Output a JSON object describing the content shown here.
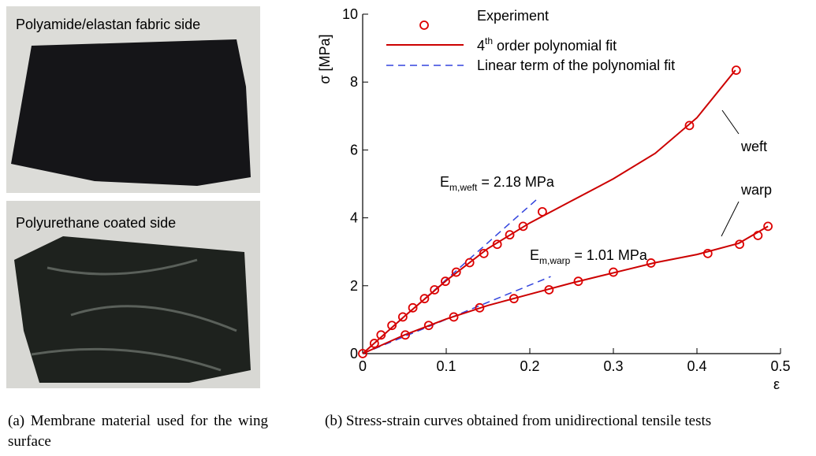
{
  "figure": {
    "photo_labels": [
      "Polyamide/elastan fabric side",
      "Polyurethane coated side"
    ],
    "caption_a": "(a) Membrane material used for the wing surface",
    "caption_b": "(b) Stress-strain curves obtained from unidirectional tensile tests"
  },
  "chart_data": {
    "type": "scatter-line",
    "x_label": "ε",
    "y_label": "σ [MPa]",
    "xlim": [
      0,
      0.5
    ],
    "ylim": [
      0,
      10
    ],
    "xticks": [
      0,
      0.1,
      0.2,
      0.3,
      0.4,
      0.5
    ],
    "yticks": [
      0,
      2,
      4,
      6,
      8,
      10
    ],
    "experiment": {
      "name": "Experiment",
      "color": "#dd0000",
      "weft": {
        "x": [
          0,
          0.014,
          0.022,
          0.035,
          0.048,
          0.06,
          0.074,
          0.086,
          0.099,
          0.112,
          0.128,
          0.145,
          0.161,
          0.176,
          0.192,
          0.215,
          0.391,
          0.447
        ],
        "values": [
          0,
          0.3,
          0.55,
          0.83,
          1.08,
          1.35,
          1.62,
          1.88,
          2.13,
          2.4,
          2.68,
          2.95,
          3.22,
          3.5,
          3.75,
          4.18,
          6.72,
          8.35
        ]
      },
      "warp": {
        "x": [
          0.051,
          0.079,
          0.109,
          0.14,
          0.181,
          0.223,
          0.258,
          0.3,
          0.345,
          0.413,
          0.451,
          0.473,
          0.485
        ],
        "values": [
          0.55,
          0.83,
          1.08,
          1.35,
          1.62,
          1.88,
          2.13,
          2.4,
          2.67,
          2.95,
          3.22,
          3.48,
          3.75
        ]
      }
    },
    "fit": {
      "name_base": "4",
      "name_sup": "th",
      "name_rest": "order polynomial fit",
      "color": "#cc0000",
      "weft": {
        "x": [
          0,
          0.05,
          0.1,
          0.15,
          0.2,
          0.25,
          0.3,
          0.35,
          0.4,
          0.446
        ],
        "values": [
          0,
          1.1,
          2.15,
          3.1,
          3.85,
          4.5,
          5.15,
          5.9,
          6.95,
          8.35
        ]
      },
      "warp": {
        "x": [
          0,
          0.05,
          0.1,
          0.15,
          0.2,
          0.25,
          0.3,
          0.35,
          0.4,
          0.45,
          0.485
        ],
        "values": [
          0,
          0.55,
          1.02,
          1.42,
          1.75,
          2.08,
          2.38,
          2.68,
          2.92,
          3.25,
          3.75
        ]
      }
    },
    "linear": {
      "name": "Linear term of the polynomial fit",
      "color": "#3344dd",
      "weft": {
        "x": [
          0,
          0.21
        ],
        "values": [
          0,
          4.58
        ]
      },
      "warp": {
        "x": [
          0,
          0.225
        ],
        "values": [
          0,
          2.27
        ]
      }
    },
    "annotations": [
      {
        "base": "E",
        "sub": "m,weft",
        "rest": "= 2.18 MPa"
      },
      {
        "base": "E",
        "sub": "m,warp",
        "rest": "= 1.01 MPa"
      }
    ],
    "curve_labels": [
      "weft",
      "warp"
    ]
  }
}
